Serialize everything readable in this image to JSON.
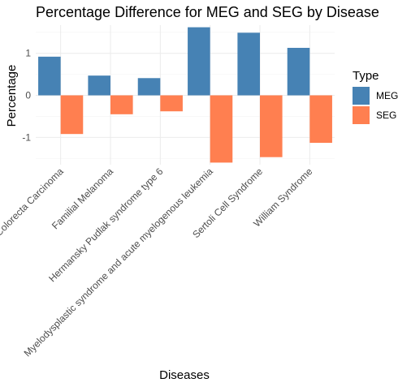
{
  "chart_data": {
    "type": "bar",
    "title": "Percentage Difference for MEG and SEG by Disease",
    "xlabel": "Diseases",
    "ylabel": "Percentage",
    "categories": [
      "Colorecta Carcinoma",
      "Familial Melanoma",
      "Hermansky Pudlak syndrome type 6",
      "Myelodysplastic syndrome and acute myelogenous leukemia",
      "Sertoli Cell Syndrome",
      "William Syndrome"
    ],
    "series": [
      {
        "name": "MEG",
        "color": "#4682b4",
        "values": [
          0.92,
          0.47,
          0.41,
          1.62,
          1.49,
          1.13
        ]
      },
      {
        "name": "SEG",
        "color": "#ff7f50",
        "values": [
          -0.92,
          -0.45,
          -0.38,
          -1.6,
          -1.47,
          -1.13
        ]
      }
    ],
    "ylim": [
      -1.65,
      1.67
    ],
    "yticks": [
      -1,
      0,
      1
    ],
    "ytick_labels": [
      "-1",
      "0",
      "1"
    ],
    "grid": true,
    "legend": {
      "title": "Type",
      "position": "right"
    }
  }
}
